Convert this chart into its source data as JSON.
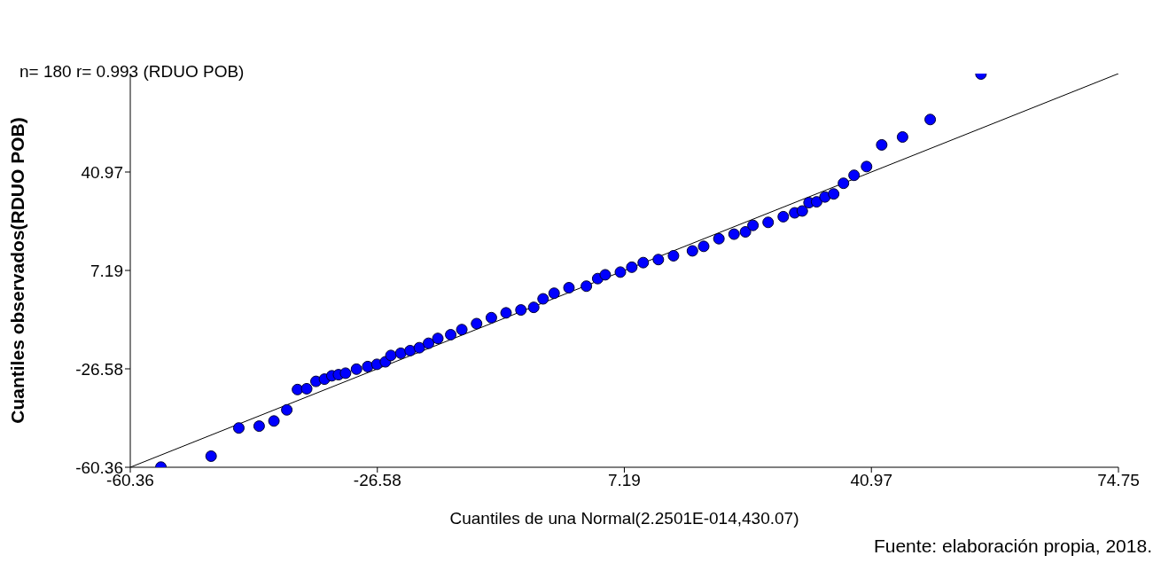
{
  "chart_data": {
    "type": "scatter",
    "title": "n= 180 r= 0.993 (RDUO POB)",
    "xlabel": "Cuantiles de una Normal(2.2501E-014,430.07)",
    "ylabel": "Cuantiles observados(RDUO POB)",
    "annotations": [
      "Fuente: elaboración propia, 2018."
    ],
    "xlim": [
      -60.36,
      74.75
    ],
    "xticks": [
      -60.36,
      -26.58,
      7.19,
      40.97,
      74.75
    ],
    "ylim": [
      -60.36,
      74.75
    ],
    "yticks": [
      -60.36,
      -26.58,
      7.19,
      40.97
    ],
    "marker": "circle",
    "series": [
      {
        "color": "#0000ff",
        "x": [
          -56.17,
          -49.31,
          -45.52,
          -42.74,
          -40.72,
          -38.96,
          -37.5,
          -36.24,
          -34.97,
          -33.81,
          -32.8,
          -31.89,
          -30.93,
          -29.43,
          -27.9,
          -26.64,
          -25.48,
          -24.73,
          -23.37,
          -22.1,
          -20.84,
          -19.58,
          -18.31,
          -16.55,
          -15.03,
          -13.01,
          -10.99,
          -8.98,
          -6.95,
          -5.2,
          -3.92,
          -2.41,
          -0.38,
          2.0,
          3.55,
          4.58,
          6.65,
          8.21,
          9.77,
          11.84,
          13.91,
          16.5,
          18.04,
          20.12,
          22.19,
          23.75,
          24.78,
          26.85,
          28.92,
          30.48,
          31.52,
          32.44,
          33.48,
          34.62,
          35.81,
          37.15,
          38.6,
          40.31,
          42.38,
          45.23,
          49.01,
          55.95
        ],
        "values": [
          -60.3,
          -56.55,
          -46.88,
          -46.24,
          -44.48,
          -40.67,
          -33.69,
          -33.41,
          -30.88,
          -30.12,
          -28.97,
          -28.59,
          -28.07,
          -26.69,
          -25.79,
          -25.03,
          -24.17,
          -21.98,
          -21.22,
          -20.33,
          -19.33,
          -17.8,
          -16.15,
          -14.87,
          -13.11,
          -11.06,
          -9.02,
          -7.37,
          -6.37,
          -5.48,
          -2.56,
          -0.63,
          1.26,
          1.8,
          4.39,
          5.7,
          6.62,
          8.3,
          9.88,
          10.92,
          12.23,
          13.91,
          15.46,
          18.08,
          19.64,
          20.43,
          22.66,
          23.69,
          25.64,
          26.96,
          27.6,
          30.46,
          30.74,
          32.41,
          33.45,
          37.11,
          39.85,
          42.84,
          50.28,
          52.99,
          58.99,
          74.6
        ]
      },
      {
        "type": "line",
        "color": "#000000",
        "x": [
          -60.36,
          74.75
        ],
        "values": [
          -60.36,
          74.75
        ],
        "marker": "none"
      }
    ]
  }
}
